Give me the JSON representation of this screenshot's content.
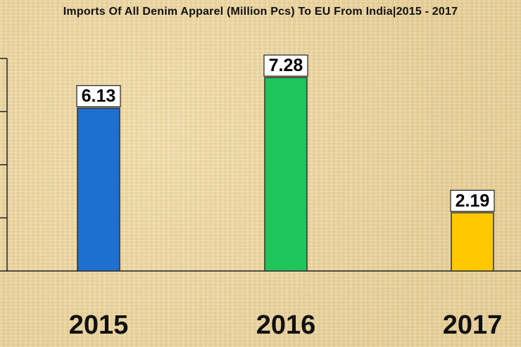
{
  "chart_data": {
    "type": "bar",
    "title": "Imports Of All Denim Apparel (Million Pcs) To EU From India|2015 - 2017",
    "categories": [
      "2015",
      "2016",
      "2017"
    ],
    "values": [
      6.13,
      7.28,
      2.19
    ],
    "value_labels": [
      "6.13",
      "7.28",
      "2.19"
    ],
    "colors": [
      "#1f6fd1",
      "#1fc45a",
      "#ffc800"
    ],
    "ylim": [
      0,
      8
    ],
    "grid": false,
    "legend": "none"
  }
}
